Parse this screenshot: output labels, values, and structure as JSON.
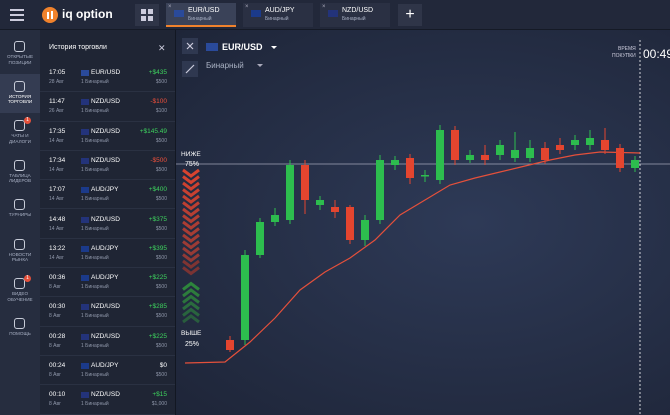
{
  "topbar": {
    "logo": "iq option",
    "tabs": [
      {
        "pair": "EUR/USD",
        "type": "Бинарный"
      },
      {
        "pair": "AUD/JPY",
        "type": "Бинарный"
      },
      {
        "pair": "NZD/USD",
        "type": "Бинарный"
      }
    ],
    "add": "+"
  },
  "sidebar": [
    {
      "label": "ОТКРЫТЫЕ ПОЗИЦИИ"
    },
    {
      "label": "ИСТОРИЯ ТОРГОВЛИ"
    },
    {
      "label": "ЧАТЫ И ДИАЛОГИ",
      "badge": "1"
    },
    {
      "label": "ТАБЛИЦА ЛИДЕРОВ"
    },
    {
      "label": "ТУРНИРЫ"
    },
    {
      "label": "НОВОСТИ РЫНКА"
    },
    {
      "label": "ВИДЕО ОБУЧЕНИЕ",
      "badge": "1"
    },
    {
      "label": "ПОМОЩЬ"
    }
  ],
  "history": {
    "title": "История торговли",
    "close": "✕",
    "rows": [
      {
        "time": "17:05",
        "date": "28 Авг",
        "pair": "EUR/USD",
        "type": "1 Бинарный",
        "profit": "+$435",
        "amount": "$500"
      },
      {
        "time": "11:47",
        "date": "26 Авг",
        "pair": "NZD/USD",
        "type": "1 Бинарный",
        "profit": "-$100",
        "amount": "$100"
      },
      {
        "time": "17:35",
        "date": "14 Авг",
        "pair": "NZD/USD",
        "type": "1 Бинарный",
        "profit": "+$145.49",
        "amount": "$500"
      },
      {
        "time": "17:34",
        "date": "14 Авг",
        "pair": "NZD/USD",
        "type": "1 Бинарный",
        "profit": "-$500",
        "amount": "$500"
      },
      {
        "time": "17:07",
        "date": "14 Авг",
        "pair": "AUD/JPY",
        "type": "1 Бинарный",
        "profit": "+$400",
        "amount": "$500"
      },
      {
        "time": "14:48",
        "date": "14 Авг",
        "pair": "NZD/USD",
        "type": "1 Бинарный",
        "profit": "+$375",
        "amount": "$500"
      },
      {
        "time": "13:22",
        "date": "14 Авг",
        "pair": "AUD/JPY",
        "type": "1 Бинарный",
        "profit": "+$395",
        "amount": "$500"
      },
      {
        "time": "00:36",
        "date": "8 Авг",
        "pair": "AUD/JPY",
        "type": "1 Бинарный",
        "profit": "+$225",
        "amount": "$500"
      },
      {
        "time": "00:30",
        "date": "8 Авг",
        "pair": "NZD/USD",
        "type": "1 Бинарный",
        "profit": "+$285",
        "amount": "$500"
      },
      {
        "time": "00:28",
        "date": "8 Авг",
        "pair": "NZD/USD",
        "type": "1 Бинарный",
        "profit": "+$225",
        "amount": "$500"
      },
      {
        "time": "00:24",
        "date": "8 Авг",
        "pair": "AUD/JPY",
        "type": "1 Бинарный",
        "profit": "$0",
        "amount": "$500"
      },
      {
        "time": "00:10",
        "date": "8 Авг",
        "pair": "NZD/USD",
        "type": "1 Бинарный",
        "profit": "+$15",
        "amount": "$1,000"
      }
    ]
  },
  "chart": {
    "asset": "EUR/USD",
    "mode": "Бинарный",
    "lower": "НИЖЕ",
    "lower_pct": "75%",
    "higher": "ВЫШЕ",
    "higher_pct": "25%",
    "buy_time_label": [
      "ВРЕМЯ",
      "ПОКУПКИ"
    ],
    "timer": "00:49"
  }
}
